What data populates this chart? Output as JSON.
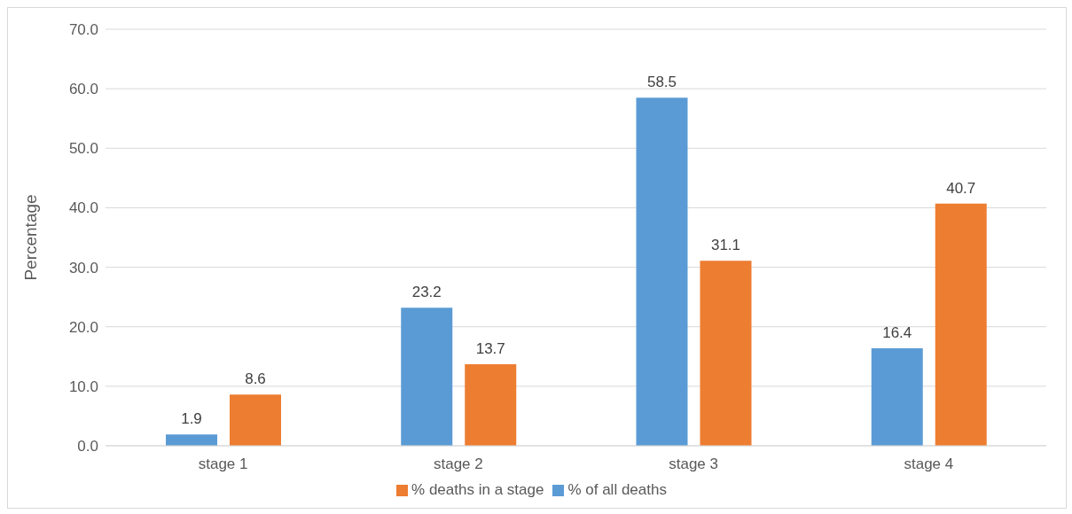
{
  "chart_data": {
    "type": "bar",
    "ylabel": "Percentage",
    "categories": [
      "stage 1",
      "stage 2",
      "stage 3",
      "stage 4"
    ],
    "series": [
      {
        "name": "% of all deaths",
        "color": "#5b9bd5",
        "values": [
          1.9,
          23.2,
          58.5,
          16.4
        ]
      },
      {
        "name": "% deaths in a stage",
        "color": "#ed7d31",
        "values": [
          8.6,
          13.7,
          31.1,
          40.7
        ]
      }
    ],
    "ylim": [
      0,
      70
    ],
    "yticks": [
      {
        "value": 0,
        "label": "0.0"
      },
      {
        "value": 10,
        "label": "10.0"
      },
      {
        "value": 20,
        "label": "20.0"
      },
      {
        "value": 30,
        "label": "30.0"
      },
      {
        "value": 40,
        "label": "40.0"
      },
      {
        "value": 50,
        "label": "50.0"
      },
      {
        "value": 60,
        "label": "60.0"
      },
      {
        "value": 70,
        "label": "70.0"
      }
    ],
    "grid": "y",
    "legend": "bottom",
    "data_labels": true
  }
}
